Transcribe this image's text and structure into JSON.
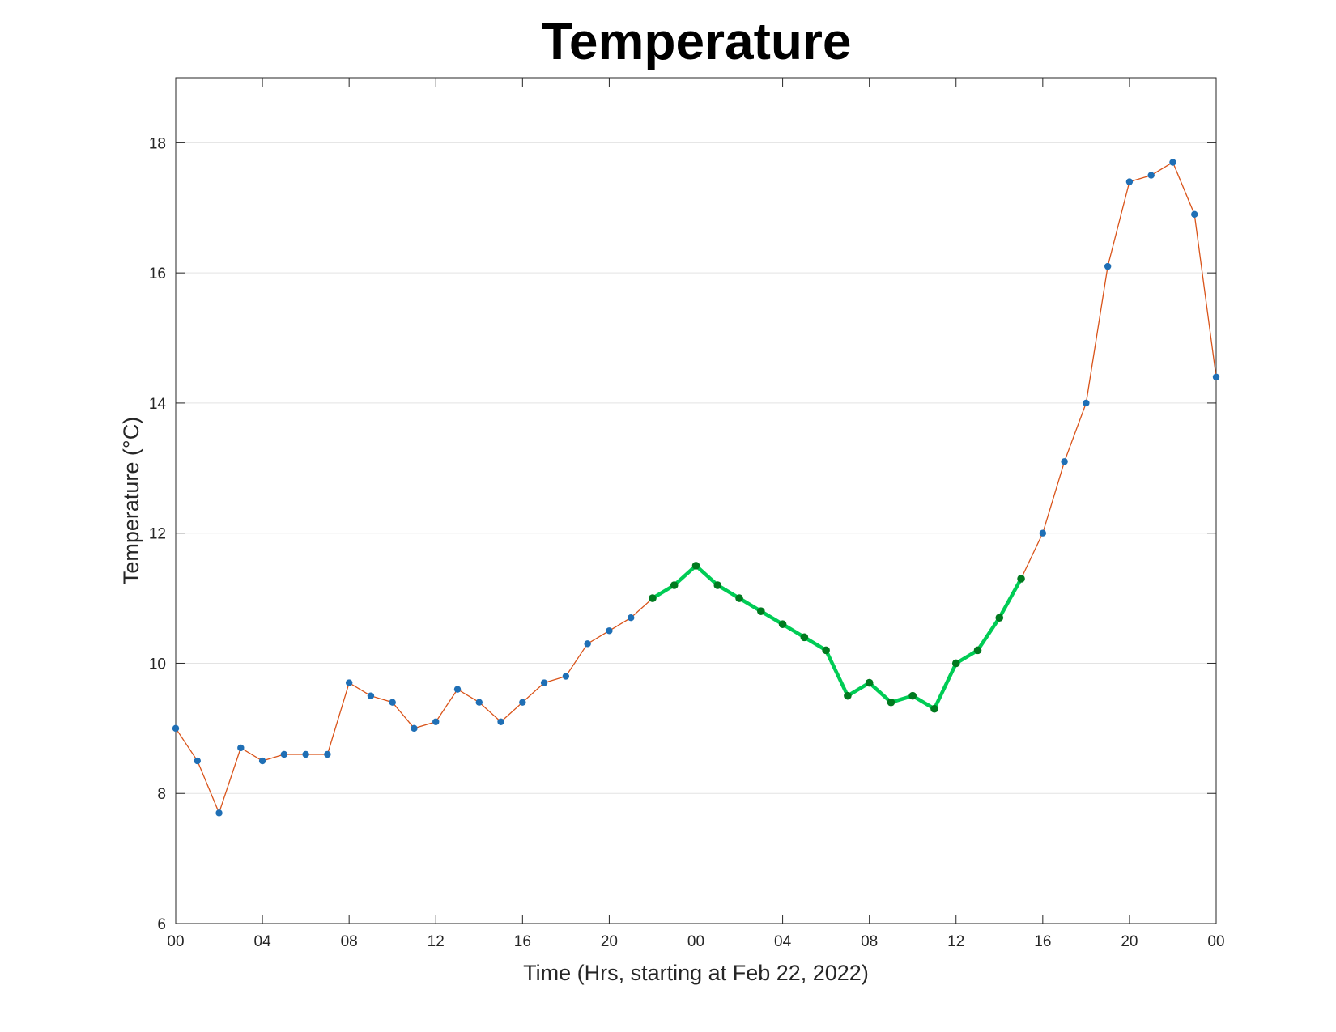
{
  "chart_data": {
    "type": "line",
    "title": "Temperature",
    "xlabel": "Time (Hrs, starting at Feb 22, 2022)",
    "ylabel": "Temperature (°C)",
    "ylim": [
      6,
      19
    ],
    "xlim": [
      "2022-02-22 00:00",
      "2022-02-24 00:00"
    ],
    "yticks": [
      "6",
      "8",
      "10",
      "12",
      "14",
      "16",
      "18"
    ],
    "xticks": [
      "00",
      "04",
      "08",
      "12",
      "16",
      "20",
      "00",
      "04",
      "08",
      "12",
      "16",
      "20",
      "00"
    ],
    "grid": "horizontal",
    "legend": "none",
    "colors": {
      "main_line": "#d95319",
      "markers": "#1f6fb5",
      "highlight_line": "#00cc55",
      "highlight_markers": "#007a1f"
    },
    "x": [
      "2022-02-22 00:00",
      "2022-02-22 01:00",
      "2022-02-22 02:00",
      "2022-02-22 03:00",
      "2022-02-22 04:00",
      "2022-02-22 05:00",
      "2022-02-22 06:00",
      "2022-02-22 07:00",
      "2022-02-22 08:00",
      "2022-02-22 09:00",
      "2022-02-22 10:00",
      "2022-02-22 11:00",
      "2022-02-22 12:00",
      "2022-02-22 13:00",
      "2022-02-22 14:00",
      "2022-02-22 15:00",
      "2022-02-22 16:00",
      "2022-02-22 17:00",
      "2022-02-22 18:00",
      "2022-02-22 19:00",
      "2022-02-22 20:00",
      "2022-02-22 21:00",
      "2022-02-22 22:00",
      "2022-02-22 23:00",
      "2022-02-23 00:00",
      "2022-02-23 01:00",
      "2022-02-23 02:00",
      "2022-02-23 03:00",
      "2022-02-23 04:00",
      "2022-02-23 05:00",
      "2022-02-23 06:00",
      "2022-02-23 07:00",
      "2022-02-23 08:00",
      "2022-02-23 09:00",
      "2022-02-23 10:00",
      "2022-02-23 11:00",
      "2022-02-23 12:00",
      "2022-02-23 13:00",
      "2022-02-23 14:00",
      "2022-02-23 15:00",
      "2022-02-23 16:00",
      "2022-02-23 17:00",
      "2022-02-23 18:00",
      "2022-02-23 19:00",
      "2022-02-23 20:00",
      "2022-02-23 21:00",
      "2022-02-23 22:00",
      "2022-02-23 23:00",
      "2022-02-24 00:00"
    ],
    "series": [
      {
        "values": [
          9.0,
          8.5,
          7.7,
          8.7,
          8.5,
          8.6,
          8.6,
          8.6,
          9.7,
          9.5,
          9.4,
          9.0,
          9.1,
          9.6,
          9.4,
          9.1,
          9.4,
          9.7,
          9.8,
          10.3,
          10.5,
          10.7,
          11.0,
          11.2,
          11.5,
          11.2,
          11.0,
          10.8,
          10.6,
          10.4,
          10.2,
          9.5,
          9.7,
          9.4,
          9.5,
          9.3,
          10.0,
          10.2,
          10.7,
          11.3,
          12.0,
          13.1,
          14.0,
          16.1,
          17.4,
          17.5,
          17.7,
          16.9,
          14.4
        ]
      },
      {
        "x": [
          "2022-02-22 22:00",
          "2022-02-22 23:00",
          "2022-02-23 00:00",
          "2022-02-23 01:00",
          "2022-02-23 02:00",
          "2022-02-23 03:00",
          "2022-02-23 04:00",
          "2022-02-23 05:00",
          "2022-02-23 06:00",
          "2022-02-23 07:00",
          "2022-02-23 08:00",
          "2022-02-23 09:00",
          "2022-02-23 10:00",
          "2022-02-23 11:00",
          "2022-02-23 12:00",
          "2022-02-23 13:00",
          "2022-02-23 14:00",
          "2022-02-23 15:00"
        ],
        "values": [
          11.0,
          11.2,
          11.5,
          11.2,
          11.0,
          10.8,
          10.6,
          10.4,
          10.2,
          9.5,
          9.7,
          9.4,
          9.5,
          9.3,
          10.0,
          10.2,
          10.7,
          11.3
        ]
      }
    ]
  }
}
